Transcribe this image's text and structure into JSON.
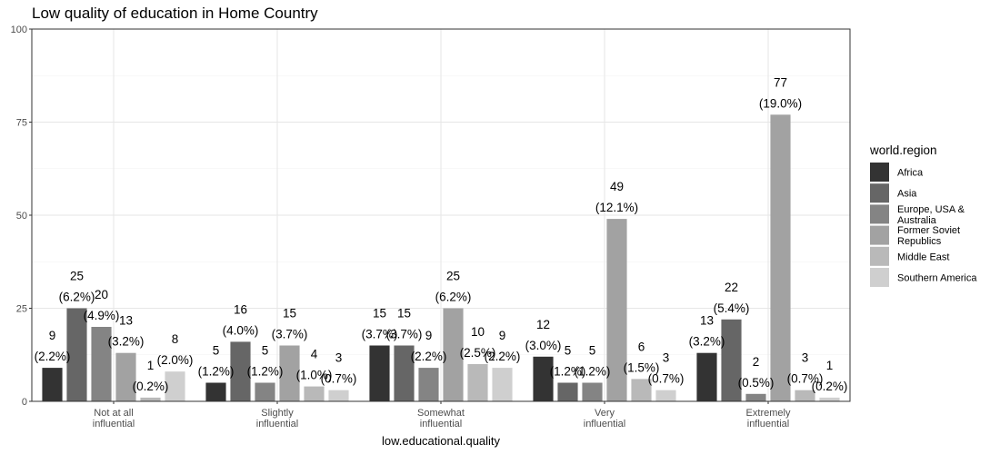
{
  "chart_data": {
    "type": "bar",
    "title": "Low quality of education in Home Country",
    "xlabel": "low.educational.quality",
    "ylabel": "",
    "ylim": [
      0,
      100
    ],
    "yticks": [
      0,
      25,
      50,
      75,
      100
    ],
    "grid": true,
    "legend_title": "world.region",
    "legend_position": "right",
    "categories": [
      [
        "Not at all",
        "influential"
      ],
      [
        "Slightly",
        "influential"
      ],
      [
        "Somewhat",
        "influential"
      ],
      [
        "Very",
        "influential"
      ],
      [
        "Extremely",
        "influential"
      ]
    ],
    "series": [
      {
        "name": [
          "Africa"
        ],
        "color": "#333333",
        "values": [
          9,
          5,
          15,
          12,
          13
        ],
        "labels": [
          "(2.2%)",
          "(1.2%)",
          "(3.7%)",
          "(3.0%)",
          "(3.2%)"
        ]
      },
      {
        "name": [
          "Asia"
        ],
        "color": "#666666",
        "values": [
          25,
          16,
          15,
          5,
          22
        ],
        "labels": [
          "(6.2%)",
          "(4.0%)",
          "(3.7%)",
          "(1.2%)",
          "(5.4%)"
        ]
      },
      {
        "name": [
          "Europe, USA &",
          "Australia"
        ],
        "color": "#848484",
        "values": [
          20,
          5,
          9,
          5,
          2
        ],
        "labels": [
          "(4.9%)",
          "(1.2%)",
          "(2.2%)",
          "(1.2%)",
          "(0.5%)"
        ]
      },
      {
        "name": [
          "Former Soviet",
          "Republics"
        ],
        "color": "#a2a2a2",
        "values": [
          13,
          15,
          25,
          49,
          77
        ],
        "labels": [
          "(3.2%)",
          "(3.7%)",
          "(6.2%)",
          "(12.1%)",
          "(19.0%)"
        ]
      },
      {
        "name": [
          "Middle East"
        ],
        "color": "#b9b9b9",
        "values": [
          1,
          4,
          10,
          6,
          3
        ],
        "labels": [
          "(0.2%)",
          "(1.0%)",
          "(2.5%)",
          "(1.5%)",
          "(0.7%)"
        ]
      },
      {
        "name": [
          "Southern America"
        ],
        "color": "#cfcfcf",
        "values": [
          8,
          3,
          9,
          3,
          1
        ],
        "labels": [
          "(2.0%)",
          "(0.7%)",
          "(2.2%)",
          "(0.7%)",
          "(0.2%)"
        ]
      }
    ]
  }
}
